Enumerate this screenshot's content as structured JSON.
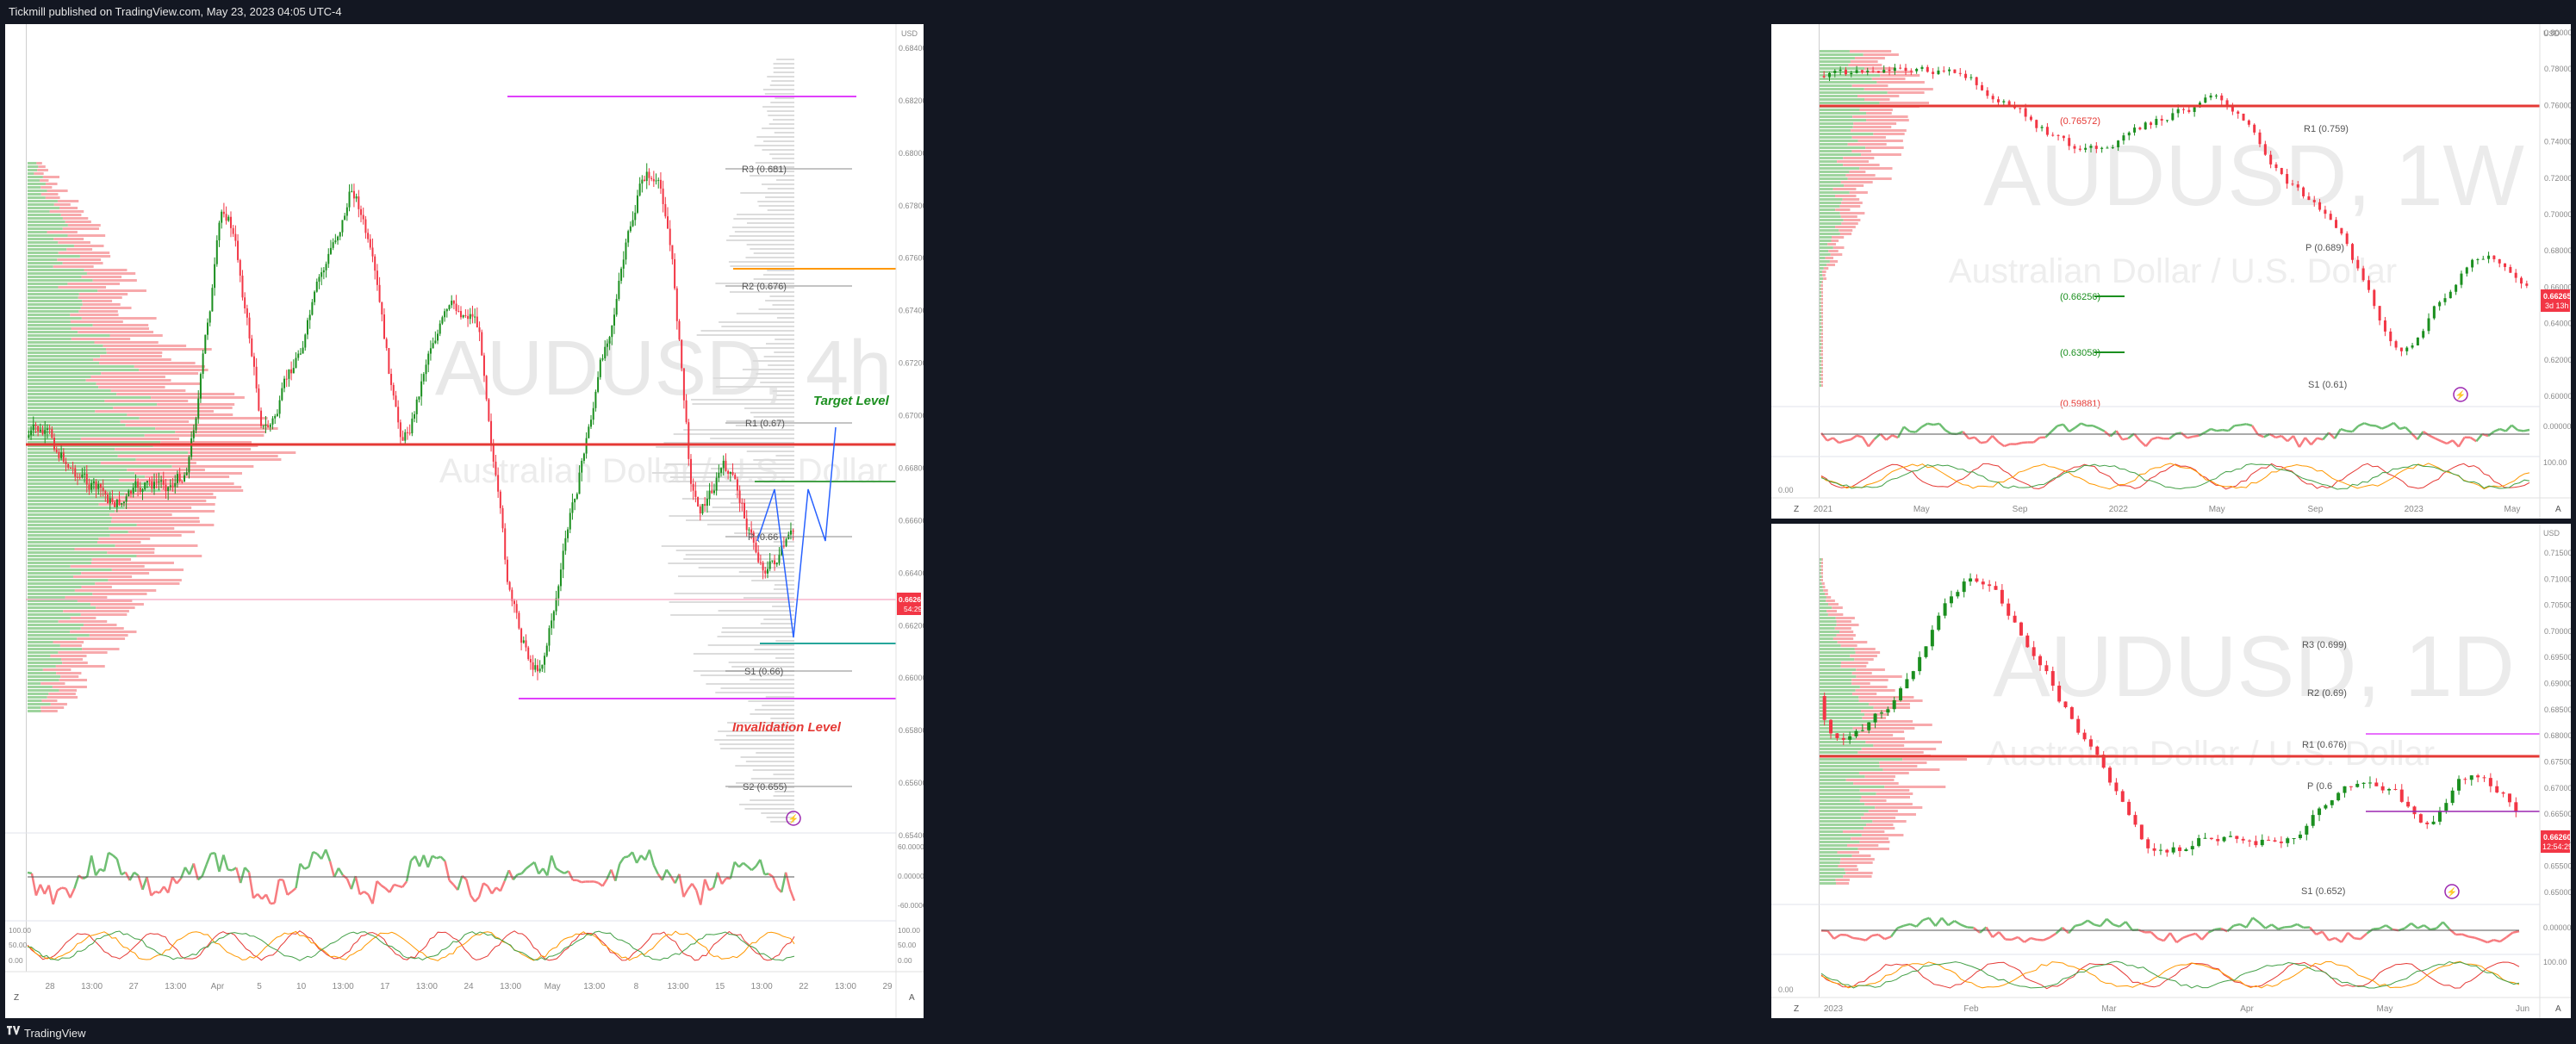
{
  "header": {
    "published": "Tickmill published on TradingView.com, May 23, 2023 04:05 UTC-4"
  },
  "footer": {
    "brand": "TradingView"
  },
  "colors": {
    "bull": "#1b8f1f",
    "bear": "#f23645",
    "pivot_line": "#a8a8a8",
    "volume_bull": "#7cc47c",
    "volume_bear": "#f77c80",
    "magenta": "#e040fb",
    "price_tag": "#f23645"
  },
  "chart_data": [
    {
      "id": "main",
      "type": "candlestick",
      "watermark_symbol": "AUDUSD, 4h",
      "watermark_desc": "Australian Dollar / U.S. Dollar",
      "currency": "USD",
      "y_ticks": [
        "0.68400",
        "0.68200",
        "0.68000",
        "0.67800",
        "0.67600",
        "0.67400",
        "0.67200",
        "0.67000",
        "0.66800",
        "0.66600",
        "0.66400",
        "0.66200",
        "0.66000",
        "0.65800",
        "0.65600",
        "0.65400"
      ],
      "x_ticks": [
        "28",
        "13:00",
        "27",
        "13:00",
        "Apr",
        "5",
        "10",
        "13:00",
        "17",
        "13:00",
        "24",
        "13:00",
        "May",
        "13:00",
        "8",
        "13:00",
        "15",
        "13:00",
        "22",
        "13:00",
        "29"
      ],
      "pivots": [
        {
          "label": "R3 (0.681)",
          "value": 0.681
        },
        {
          "label": "R2 (0.676)",
          "value": 0.676
        },
        {
          "label": "R1 (0.67)",
          "value": 0.67
        },
        {
          "label": "P (0.66",
          "value": 0.6655
        },
        {
          "label": "S1 (0.66)",
          "value": 0.66
        },
        {
          "label": "S2 (0.655)",
          "value": 0.655
        }
      ],
      "annotations": {
        "target": "Target Level",
        "invalidation": "Invalidation Level"
      },
      "price_tag": {
        "price": "0.66265",
        "countdown": "54:29"
      },
      "osc1_ticks": [
        "60.00000",
        "0.00000",
        "-60.00000"
      ],
      "osc2_ticks": [
        "100.00",
        "50.00",
        "0.00"
      ]
    },
    {
      "id": "weekly",
      "type": "candlestick",
      "watermark_symbol": "AUDUSD, 1W",
      "watermark_desc": "Australian Dollar / U.S. Dollar",
      "currency": "USD",
      "y_ticks": [
        "0.80000",
        "0.78000",
        "0.76000",
        "0.74000",
        "0.72000",
        "0.70000",
        "0.68000",
        "0.66000",
        "0.64000",
        "0.62000",
        "0.60000"
      ],
      "x_ticks": [
        "2021",
        "May",
        "Sep",
        "2022",
        "May",
        "Sep",
        "2023",
        "May"
      ],
      "labels": [
        "(0.76572)",
        "R1 (0.759)",
        "P (0.689)",
        "(0.66256)",
        "(0.63058)",
        "S1 (0.61)",
        "(0.59881)"
      ],
      "price_tag": {
        "price": "0.66265",
        "countdown": "3d 13h"
      },
      "osc1_ticks": [
        "0.00000"
      ],
      "osc2_ticks": [
        "100.00",
        "0.00"
      ]
    },
    {
      "id": "daily",
      "type": "candlestick",
      "watermark_symbol": "AUDUSD, 1D",
      "watermark_desc": "Australian Dollar / U.S. Dollar",
      "currency": "USD",
      "y_ticks": [
        "0.71500",
        "0.71000",
        "0.70500",
        "0.70000",
        "0.69500",
        "0.69000",
        "0.68500",
        "0.68000",
        "0.67500",
        "0.67000",
        "0.66500",
        "0.66000",
        "0.65500",
        "0.65000"
      ],
      "x_ticks": [
        "2023",
        "Feb",
        "Mar",
        "Apr",
        "May",
        "Jun"
      ],
      "labels": [
        "R3 (0.699)",
        "R2 (0.69)",
        "R1 (0.676)",
        "P (0.6",
        "S1 (0.652)"
      ],
      "price_tag": {
        "price": "0.66260",
        "countdown": "12:54:29"
      },
      "osc1_ticks": [
        "0.00000"
      ],
      "osc2_ticks": [
        "100.00",
        "0.00"
      ]
    }
  ]
}
